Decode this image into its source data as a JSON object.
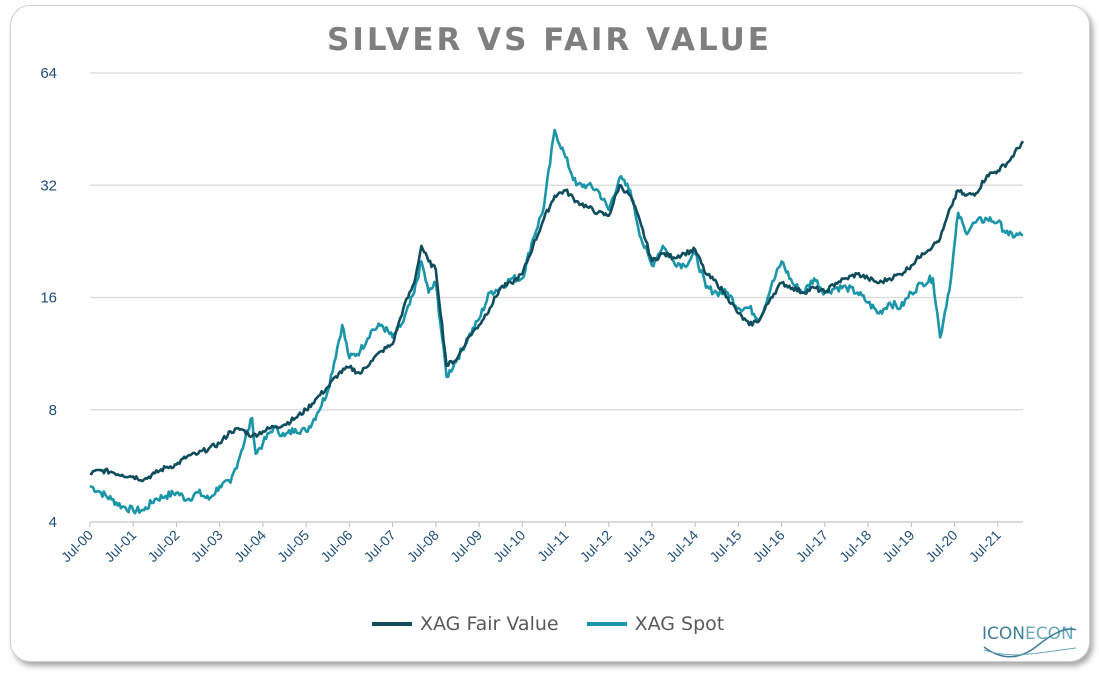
{
  "chart_data": {
    "type": "line",
    "title": "SILVER VS FAIR VALUE",
    "xlabel": "",
    "ylabel": "",
    "y_scale": "log2",
    "ylim": [
      4,
      64
    ],
    "y_ticks": [
      4,
      8,
      16,
      32,
      64
    ],
    "x_range": [
      "2000-07",
      "2022-02"
    ],
    "x_ticks": [
      "Jul-00",
      "Jul-01",
      "Jul-02",
      "Jul-03",
      "Jul-04",
      "Jul-05",
      "Jul-06",
      "Jul-07",
      "Jul-08",
      "Jul-09",
      "Jul-10",
      "Jul-11",
      "Jul-12",
      "Jul-13",
      "Jul-14",
      "Jul-15",
      "Jul-16",
      "Jul-17",
      "Jul-18",
      "Jul-19",
      "Jul-20",
      "Jul-21"
    ],
    "grid": "horizontal",
    "legend_position": "bottom",
    "series": [
      {
        "name": "XAG Fair Value",
        "color": "#0f4c5c",
        "points": [
          [
            "2000-07",
            5.4
          ],
          [
            "2000-10",
            5.5
          ],
          [
            "2001-01",
            5.45
          ],
          [
            "2001-04",
            5.35
          ],
          [
            "2001-07",
            5.3
          ],
          [
            "2001-10",
            5.2
          ],
          [
            "2002-01",
            5.4
          ],
          [
            "2002-04",
            5.6
          ],
          [
            "2002-07",
            5.7
          ],
          [
            "2002-10",
            6.0
          ],
          [
            "2003-01",
            6.1
          ],
          [
            "2003-04",
            6.3
          ],
          [
            "2003-07",
            6.5
          ],
          [
            "2003-10",
            7.0
          ],
          [
            "2004-01",
            7.1
          ],
          [
            "2004-04",
            6.8
          ],
          [
            "2004-07",
            7.0
          ],
          [
            "2004-10",
            7.2
          ],
          [
            "2005-01",
            7.3
          ],
          [
            "2005-04",
            7.6
          ],
          [
            "2005-07",
            8.0
          ],
          [
            "2005-10",
            8.6
          ],
          [
            "2006-01",
            9.2
          ],
          [
            "2006-04",
            10.0
          ],
          [
            "2006-07",
            10.4
          ],
          [
            "2006-10",
            10.0
          ],
          [
            "2007-01",
            10.8
          ],
          [
            "2007-04",
            11.5
          ],
          [
            "2007-07",
            12.0
          ],
          [
            "2007-10",
            15.0
          ],
          [
            "2008-01",
            17.5
          ],
          [
            "2008-03",
            22.0
          ],
          [
            "2008-05",
            20.0
          ],
          [
            "2008-07",
            19.0
          ],
          [
            "2008-10",
            10.5
          ],
          [
            "2009-01",
            11.0
          ],
          [
            "2009-04",
            12.5
          ],
          [
            "2009-07",
            13.5
          ],
          [
            "2009-10",
            15.0
          ],
          [
            "2010-01",
            17.0
          ],
          [
            "2010-04",
            17.5
          ],
          [
            "2010-07",
            18.5
          ],
          [
            "2010-10",
            22.0
          ],
          [
            "2011-01",
            26.0
          ],
          [
            "2011-04",
            30.0
          ],
          [
            "2011-07",
            31.0
          ],
          [
            "2011-10",
            29.0
          ],
          [
            "2012-01",
            28.0
          ],
          [
            "2012-04",
            27.0
          ],
          [
            "2012-07",
            26.5
          ],
          [
            "2012-10",
            32.0
          ],
          [
            "2013-01",
            30.0
          ],
          [
            "2013-04",
            25.0
          ],
          [
            "2013-07",
            20.0
          ],
          [
            "2013-10",
            21.0
          ],
          [
            "2014-01",
            20.5
          ],
          [
            "2014-04",
            21.0
          ],
          [
            "2014-07",
            21.5
          ],
          [
            "2014-10",
            18.5
          ],
          [
            "2015-01",
            17.5
          ],
          [
            "2015-04",
            16.0
          ],
          [
            "2015-07",
            14.5
          ],
          [
            "2015-10",
            13.5
          ],
          [
            "2016-01",
            14.0
          ],
          [
            "2016-04",
            16.0
          ],
          [
            "2016-07",
            17.5
          ],
          [
            "2016-10",
            17.0
          ],
          [
            "2017-01",
            16.5
          ],
          [
            "2017-04",
            17.0
          ],
          [
            "2017-07",
            16.5
          ],
          [
            "2017-10",
            17.5
          ],
          [
            "2018-01",
            18.0
          ],
          [
            "2018-04",
            18.5
          ],
          [
            "2018-07",
            18.0
          ],
          [
            "2018-10",
            17.5
          ],
          [
            "2019-01",
            18.0
          ],
          [
            "2019-04",
            18.5
          ],
          [
            "2019-07",
            19.5
          ],
          [
            "2019-10",
            21.0
          ],
          [
            "2020-01",
            22.0
          ],
          [
            "2020-03",
            23.0
          ],
          [
            "2020-06",
            28.0
          ],
          [
            "2020-08",
            31.0
          ],
          [
            "2020-10",
            30.0
          ],
          [
            "2021-01",
            30.5
          ],
          [
            "2021-04",
            34.0
          ],
          [
            "2021-07",
            35.0
          ],
          [
            "2021-10",
            37.0
          ],
          [
            "2022-02",
            42.0
          ]
        ]
      },
      {
        "name": "XAG Spot",
        "color": "#1b95a8",
        "points": [
          [
            "2000-07",
            5.0
          ],
          [
            "2000-10",
            4.8
          ],
          [
            "2001-01",
            4.6
          ],
          [
            "2001-04",
            4.4
          ],
          [
            "2001-07",
            4.3
          ],
          [
            "2001-10",
            4.3
          ],
          [
            "2002-01",
            4.6
          ],
          [
            "2002-04",
            4.7
          ],
          [
            "2002-07",
            4.8
          ],
          [
            "2002-10",
            4.6
          ],
          [
            "2003-01",
            4.8
          ],
          [
            "2003-04",
            4.6
          ],
          [
            "2003-07",
            5.0
          ],
          [
            "2003-10",
            5.1
          ],
          [
            "2004-01",
            6.2
          ],
          [
            "2004-04",
            7.6
          ],
          [
            "2004-05",
            6.1
          ],
          [
            "2004-07",
            6.5
          ],
          [
            "2004-10",
            7.2
          ],
          [
            "2005-01",
            6.8
          ],
          [
            "2005-04",
            7.1
          ],
          [
            "2005-07",
            7.0
          ],
          [
            "2005-10",
            7.8
          ],
          [
            "2006-01",
            9.0
          ],
          [
            "2006-05",
            13.5
          ],
          [
            "2006-07",
            11.0
          ],
          [
            "2006-10",
            11.5
          ],
          [
            "2007-01",
            13.0
          ],
          [
            "2007-04",
            13.5
          ],
          [
            "2007-07",
            12.5
          ],
          [
            "2007-10",
            13.8
          ],
          [
            "2008-01",
            16.5
          ],
          [
            "2008-03",
            20.0
          ],
          [
            "2008-05",
            16.5
          ],
          [
            "2008-07",
            17.5
          ],
          [
            "2008-10",
            9.8
          ],
          [
            "2009-01",
            11.0
          ],
          [
            "2009-04",
            12.5
          ],
          [
            "2009-07",
            14.0
          ],
          [
            "2009-10",
            16.5
          ],
          [
            "2010-01",
            17.0
          ],
          [
            "2010-04",
            18.0
          ],
          [
            "2010-07",
            18.0
          ],
          [
            "2010-10",
            23.0
          ],
          [
            "2011-01",
            28.0
          ],
          [
            "2011-04",
            45.0
          ],
          [
            "2011-07",
            38.0
          ],
          [
            "2011-10",
            32.0
          ],
          [
            "2012-01",
            32.0
          ],
          [
            "2012-04",
            31.0
          ],
          [
            "2012-07",
            27.5
          ],
          [
            "2012-10",
            33.5
          ],
          [
            "2013-01",
            31.0
          ],
          [
            "2013-04",
            23.0
          ],
          [
            "2013-07",
            19.5
          ],
          [
            "2013-10",
            22.0
          ],
          [
            "2014-01",
            20.0
          ],
          [
            "2014-04",
            19.5
          ],
          [
            "2014-07",
            21.0
          ],
          [
            "2014-10",
            17.0
          ],
          [
            "2015-01",
            16.5
          ],
          [
            "2015-04",
            16.5
          ],
          [
            "2015-07",
            15.0
          ],
          [
            "2015-10",
            15.0
          ],
          [
            "2016-01",
            14.0
          ],
          [
            "2016-04",
            17.0
          ],
          [
            "2016-07",
            20.0
          ],
          [
            "2016-10",
            17.5
          ],
          [
            "2017-01",
            16.5
          ],
          [
            "2017-04",
            18.0
          ],
          [
            "2017-07",
            16.5
          ],
          [
            "2017-10",
            17.0
          ],
          [
            "2018-01",
            17.0
          ],
          [
            "2018-04",
            16.5
          ],
          [
            "2018-07",
            15.5
          ],
          [
            "2018-10",
            14.5
          ],
          [
            "2019-01",
            15.5
          ],
          [
            "2019-04",
            15.0
          ],
          [
            "2019-07",
            16.5
          ],
          [
            "2019-10",
            17.5
          ],
          [
            "2020-01",
            18.0
          ],
          [
            "2020-03",
            12.5
          ],
          [
            "2020-06",
            18.0
          ],
          [
            "2020-08",
            27.0
          ],
          [
            "2020-10",
            24.0
          ],
          [
            "2021-01",
            25.5
          ],
          [
            "2021-04",
            26.0
          ],
          [
            "2021-07",
            25.5
          ],
          [
            "2021-10",
            23.5
          ],
          [
            "2022-02",
            23.5
          ]
        ]
      }
    ]
  },
  "legend": [
    {
      "label": "XAG Fair Value",
      "color": "#0f4c5c"
    },
    {
      "label": "XAG Spot",
      "color": "#1b95a8"
    }
  ],
  "brand": {
    "part1": "ICON",
    "part2": "ECON"
  }
}
